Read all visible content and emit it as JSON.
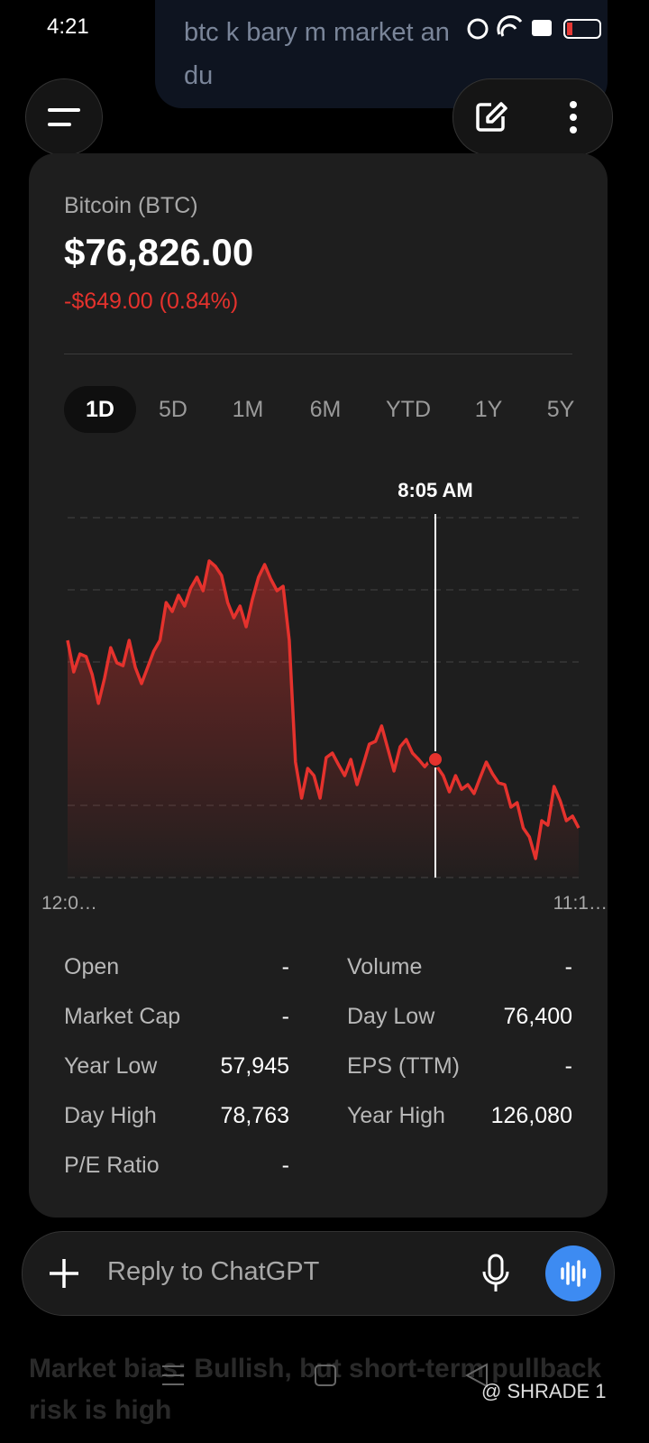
{
  "status_bar": {
    "time": "4:21"
  },
  "previous_message": {
    "lines": [
      "btc k bary m market an",
      "du"
    ]
  },
  "widget": {
    "name": "Bitcoin (BTC)",
    "price": "$76,826.00",
    "change": "-$649.00 (0.84%)",
    "tabs": [
      "1D",
      "5D",
      "1M",
      "6M",
      "YTD",
      "1Y",
      "5Y"
    ],
    "selected_tab": "1D",
    "chart": {
      "type": "line",
      "color": "#e5322d",
      "values": [
        78133,
        77882,
        78025,
        78004,
        77861,
        77632,
        77832,
        78075,
        77954,
        77932,
        78133,
        77918,
        77789,
        77918,
        78047,
        78133,
        78433,
        78362,
        78491,
        78405,
        78548,
        78634,
        78527,
        78763,
        78720,
        78648,
        78433,
        78312,
        78405,
        78240,
        78455,
        78634,
        78734,
        78620,
        78527,
        78562,
        78133,
        77166,
        76880,
        77116,
        77059,
        76880,
        77202,
        77238,
        77145,
        77059,
        77188,
        76987,
        77145,
        77309,
        77331,
        77453,
        77274,
        77095,
        77288,
        77345,
        77238,
        77188,
        77130,
        77188,
        77130,
        77059,
        76930,
        77059,
        76951,
        76987,
        76916,
        77044,
        77166,
        77073,
        77001,
        76987,
        76808,
        76844,
        76643,
        76572,
        76400,
        76701,
        76665,
        76973,
        76858,
        76701,
        76737,
        76643
      ],
      "crosshair": {
        "label": "8:05 AM",
        "value": 77188
      },
      "start_label": "12:0…",
      "end_label": "11:1…"
    },
    "stats": [
      [
        {
          "label": "Open",
          "value": "-"
        },
        {
          "label": "Volume",
          "value": "-"
        }
      ],
      [
        {
          "label": "Market Cap",
          "value": "-"
        },
        {
          "label": "Day Low",
          "value": "76,400"
        }
      ],
      [
        {
          "label": "Year Low",
          "value": "57,945"
        },
        {
          "label": "EPS (TTM)",
          "value": "-"
        }
      ],
      [
        {
          "label": "Day High",
          "value": "78,763"
        },
        {
          "label": "Year High",
          "value": "126,080"
        }
      ],
      [
        {
          "label": "P/E Ratio",
          "value": "-"
        }
      ]
    ]
  },
  "composer": {
    "placeholder": "Reply to ChatGPT"
  },
  "next_message": {
    "lines": [
      "Market bias: Bullish, but short-term pullback",
      "risk is high"
    ]
  },
  "watermark": "@ SHRADE 1"
}
